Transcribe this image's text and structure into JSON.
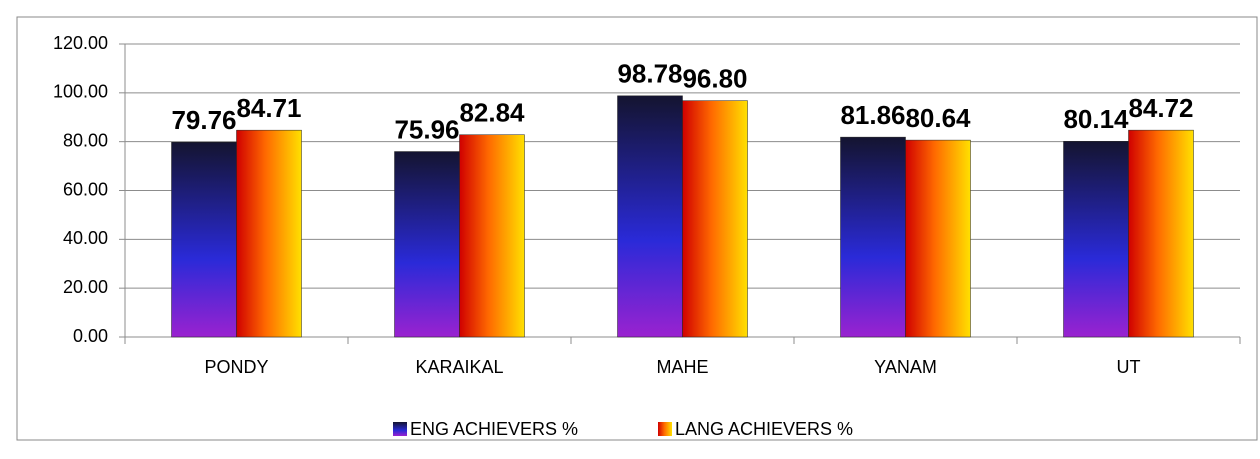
{
  "chart_data": {
    "type": "bar",
    "categories": [
      "PONDY",
      "KARAIKAL",
      "MAHE",
      "YANAM",
      "UT"
    ],
    "series": [
      {
        "name": "ENG ACHIEVERS %",
        "color": "#2a2ad8",
        "values": [
          79.76,
          75.96,
          98.78,
          81.86,
          80.14
        ],
        "value_labels": [
          "79.76",
          "75.96",
          "98.78",
          "81.86",
          "80.14"
        ]
      },
      {
        "name": "LANG ACHIEVERS %",
        "color": "#ff6a00",
        "values": [
          84.71,
          82.84,
          96.8,
          80.64,
          84.72
        ],
        "value_labels": [
          "84.71",
          "82.84",
          "96.80",
          "80.64",
          "84.72"
        ]
      }
    ],
    "ylim": [
      0,
      120
    ],
    "yticks": [
      {
        "value": 0,
        "label": "0.00"
      },
      {
        "value": 20,
        "label": "20.00"
      },
      {
        "value": 40,
        "label": "40.00"
      },
      {
        "value": 60,
        "label": "60.00"
      },
      {
        "value": 80,
        "label": "80.00"
      },
      {
        "value": 100,
        "label": "100.00"
      },
      {
        "value": 120,
        "label": "120.00"
      }
    ],
    "grid": true,
    "legend": "bottom"
  }
}
